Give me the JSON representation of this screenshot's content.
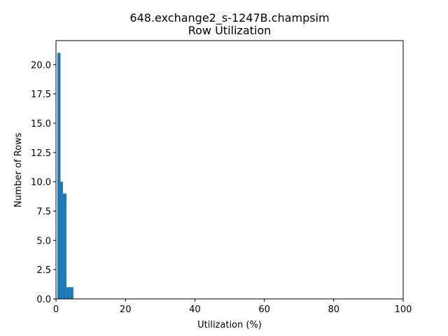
{
  "chart_data": {
    "type": "histogram",
    "title": "648.exchange2_s-1247B.champsim",
    "subtitle": "Row Utilization",
    "x_label": "Utilization (%)",
    "y_label": "Number of Rows",
    "bins": [
      0.4,
      1.3,
      2.0,
      3.0,
      4.0,
      5.0
    ],
    "values": [
      21,
      10,
      9,
      1,
      1
    ],
    "color": "#1f77b4",
    "xlim": [
      0,
      100
    ],
    "xticks": [
      0,
      20,
      40,
      60,
      80,
      100
    ],
    "ylim": [
      0,
      22.05
    ],
    "yticks": [
      {
        "value": 0,
        "label": "0.0"
      },
      {
        "value": 2.5,
        "label": "2.5"
      },
      {
        "value": 5,
        "label": "5.0"
      },
      {
        "value": 7.5,
        "label": "7.5"
      },
      {
        "value": 10,
        "label": "10.0"
      },
      {
        "value": 12.5,
        "label": "12.5"
      },
      {
        "value": 15,
        "label": "15.0"
      },
      {
        "value": 17.5,
        "label": "17.5"
      },
      {
        "value": 20,
        "label": "20.0"
      }
    ]
  }
}
